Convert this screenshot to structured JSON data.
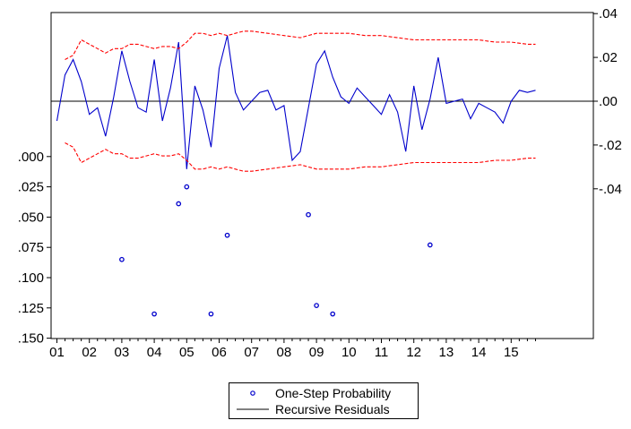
{
  "chart_data": {
    "type": "line",
    "x_tick_labels": [
      "01",
      "02",
      "03",
      "04",
      "05",
      "06",
      "07",
      "08",
      "09",
      "10",
      "11",
      "12",
      "13",
      "14",
      "15"
    ],
    "left_axis": {
      "tick_labels": [
        ".000",
        ".025",
        ".050",
        ".075",
        ".100",
        ".125",
        ".150"
      ],
      "tick_values": [
        0.0,
        0.025,
        0.05,
        0.075,
        0.1,
        0.125,
        0.15
      ],
      "range": [
        0.0,
        0.15
      ],
      "inverted": true
    },
    "right_axis": {
      "tick_labels": [
        ".04",
        ".02",
        ".00",
        "-.02",
        "-.04"
      ],
      "tick_values": [
        0.04,
        0.02,
        0.0,
        -0.02,
        -0.04
      ],
      "range": [
        -0.045,
        0.04
      ]
    },
    "grid": false,
    "legend_position": "bottom-center",
    "series": [
      {
        "name": "Recursive Residuals",
        "color": "#0000cc",
        "style": "solid",
        "axis": "right",
        "x": [
          0.0,
          0.25,
          0.5,
          0.75,
          1.0,
          1.25,
          1.5,
          1.75,
          2.0,
          2.25,
          2.5,
          2.75,
          3.0,
          3.25,
          3.5,
          3.75,
          4.0,
          4.25,
          4.5,
          4.75,
          5.0,
          5.25,
          5.5,
          5.75,
          6.0,
          6.25,
          6.5,
          6.75,
          7.0,
          7.25,
          7.5,
          7.75,
          8.0,
          8.25,
          8.5,
          8.75,
          9.0,
          9.25,
          9.5,
          9.75,
          10.0,
          10.25,
          10.5,
          10.75,
          11.0,
          11.25,
          11.5,
          11.75,
          12.0,
          12.25,
          12.5,
          12.75,
          13.0,
          13.25,
          13.5,
          13.75,
          14.0,
          14.25,
          14.5,
          14.75
        ],
        "y": [
          -0.009,
          0.012,
          0.019,
          0.009,
          -0.006,
          -0.003,
          -0.016,
          0.002,
          0.023,
          0.009,
          -0.003,
          -0.005,
          0.019,
          -0.009,
          0.006,
          0.027,
          -0.031,
          0.007,
          -0.004,
          -0.021,
          0.015,
          0.03,
          0.004,
          -0.004,
          0.0,
          0.004,
          0.005,
          -0.004,
          -0.002,
          -0.027,
          -0.023,
          -0.003,
          0.017,
          0.023,
          0.011,
          0.002,
          -0.001,
          0.006,
          0.002,
          -0.002,
          -0.006,
          0.003,
          -0.005,
          -0.023,
          0.007,
          -0.013,
          0.001,
          0.02,
          -0.001,
          0.0,
          0.001,
          -0.008,
          -0.001,
          -0.003,
          -0.005,
          -0.01,
          0.0,
          0.005,
          0.004,
          0.005
        ]
      },
      {
        "name": "",
        "color": "#ff0000",
        "style": "dashed",
        "axis": "right",
        "x": [
          0.25,
          0.5,
          0.75,
          1.0,
          1.25,
          1.5,
          1.75,
          2.0,
          2.25,
          2.5,
          2.75,
          3.0,
          3.25,
          3.5,
          3.75,
          4.0,
          4.25,
          4.5,
          4.75,
          5.0,
          5.25,
          5.5,
          5.75,
          6.0,
          6.5,
          7.0,
          7.5,
          8.0,
          8.25,
          8.5,
          9.0,
          9.5,
          10.0,
          10.5,
          11.0,
          11.5,
          12.0,
          12.5,
          13.0,
          13.5,
          14.0,
          14.5,
          14.75
        ],
        "y": [
          0.019,
          0.021,
          0.028,
          0.026,
          0.024,
          0.022,
          0.024,
          0.024,
          0.026,
          0.026,
          0.025,
          0.024,
          0.025,
          0.025,
          0.024,
          0.027,
          0.031,
          0.031,
          0.03,
          0.031,
          0.03,
          0.031,
          0.032,
          0.032,
          0.031,
          0.03,
          0.029,
          0.031,
          0.031,
          0.031,
          0.031,
          0.03,
          0.03,
          0.029,
          0.028,
          0.028,
          0.028,
          0.028,
          0.028,
          0.027,
          0.027,
          0.026,
          0.026
        ]
      },
      {
        "name": "",
        "color": "#ff0000",
        "style": "dashed",
        "axis": "right",
        "x": [
          0.25,
          0.5,
          0.75,
          1.0,
          1.25,
          1.5,
          1.75,
          2.0,
          2.25,
          2.5,
          2.75,
          3.0,
          3.25,
          3.5,
          3.75,
          4.0,
          4.25,
          4.5,
          4.75,
          5.0,
          5.25,
          5.5,
          5.75,
          6.0,
          6.5,
          7.0,
          7.5,
          8.0,
          8.25,
          8.5,
          9.0,
          9.5,
          10.0,
          10.5,
          11.0,
          11.5,
          12.0,
          12.5,
          13.0,
          13.5,
          14.0,
          14.5,
          14.75
        ],
        "y": [
          -0.019,
          -0.021,
          -0.028,
          -0.026,
          -0.024,
          -0.022,
          -0.024,
          -0.024,
          -0.026,
          -0.026,
          -0.025,
          -0.024,
          -0.025,
          -0.025,
          -0.024,
          -0.027,
          -0.031,
          -0.031,
          -0.03,
          -0.031,
          -0.03,
          -0.031,
          -0.032,
          -0.032,
          -0.031,
          -0.03,
          -0.029,
          -0.031,
          -0.031,
          -0.031,
          -0.031,
          -0.03,
          -0.03,
          -0.029,
          -0.028,
          -0.028,
          -0.028,
          -0.028,
          -0.028,
          -0.027,
          -0.027,
          -0.026,
          -0.026
        ]
      },
      {
        "name": "One-Step Probability",
        "color": "#0000cc",
        "style": "markers",
        "axis": "left",
        "x": [
          2.0,
          3.0,
          3.75,
          4.0,
          4.75,
          5.25,
          7.75,
          8.0,
          8.5,
          11.5
        ],
        "y": [
          0.085,
          0.13,
          0.039,
          0.025,
          0.13,
          0.065,
          0.048,
          0.123,
          0.13,
          0.073
        ]
      }
    ],
    "legend": [
      {
        "label": "One-Step Probability",
        "symbol": "circle",
        "color": "#0000cc"
      },
      {
        "label": "Recursive Residuals",
        "symbol": "line",
        "color": "#000000"
      }
    ]
  }
}
